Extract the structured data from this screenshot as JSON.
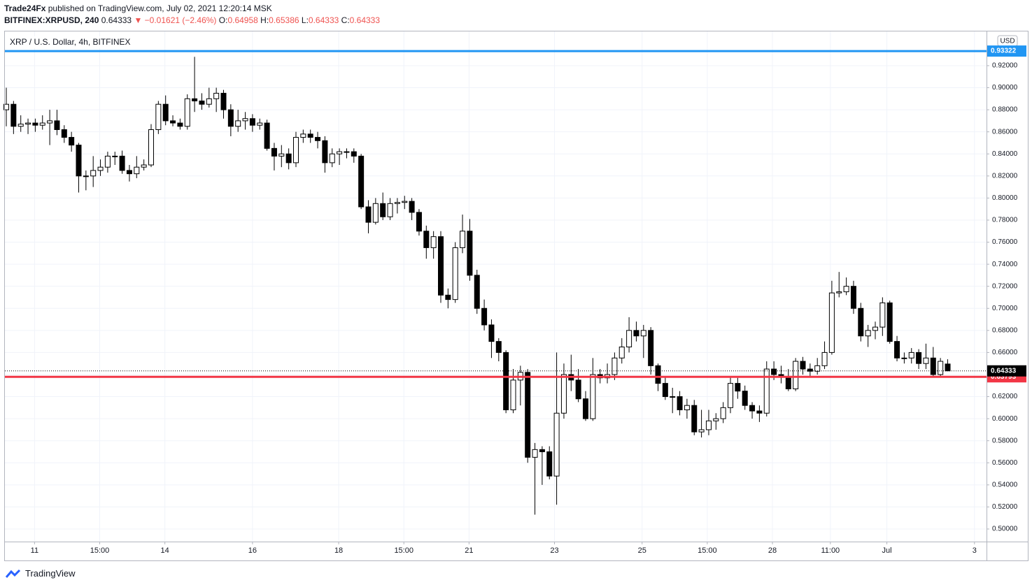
{
  "header": {
    "author": "Trade24Fx",
    "published": "published on TradingView.com, July 02, 2021 12:20:14 MSK",
    "symbol": "BITFINEX:XRPUSD, 240",
    "change": "▼ −0.01621 (−2.46%)",
    "ohlc_labels": [
      "O:",
      "H:",
      "L:",
      "C:"
    ]
  },
  "footer": {
    "brand": "TradingView"
  },
  "chart_data": {
    "type": "candlestick",
    "title": "XRP / U.S. Dollar, 4h, BITFINEX",
    "currency": "USD",
    "up_color": "#ffffff",
    "down_color": "#000000",
    "grid": true,
    "ylim": [
      0.4886,
      0.951
    ],
    "yticks": [
      {
        "value": 0.5,
        "label": "0.50000"
      },
      {
        "value": 0.52,
        "label": "0.52000"
      },
      {
        "value": 0.54,
        "label": "0.54000"
      },
      {
        "value": 0.56,
        "label": "0.56000"
      },
      {
        "value": 0.58,
        "label": "0.58000"
      },
      {
        "value": 0.6,
        "label": "0.60000"
      },
      {
        "value": 0.62,
        "label": "0.62000"
      },
      {
        "value": 0.64,
        "label": "0.64000"
      },
      {
        "value": 0.66,
        "label": "0.66000"
      },
      {
        "value": 0.68,
        "label": "0.68000"
      },
      {
        "value": 0.7,
        "label": "0.70000"
      },
      {
        "value": 0.72,
        "label": "0.72000"
      },
      {
        "value": 0.74,
        "label": "0.74000"
      },
      {
        "value": 0.76,
        "label": "0.76000"
      },
      {
        "value": 0.78,
        "label": "0.78000"
      },
      {
        "value": 0.8,
        "label": "0.80000"
      },
      {
        "value": 0.82,
        "label": "0.82000"
      },
      {
        "value": 0.84,
        "label": "0.84000"
      },
      {
        "value": 0.86,
        "label": "0.86000"
      },
      {
        "value": 0.88,
        "label": "0.88000"
      },
      {
        "value": 0.9,
        "label": "0.90000"
      },
      {
        "value": 0.92,
        "label": "0.92000"
      }
    ],
    "xticks": [
      {
        "value": 3.9,
        "label": "11"
      },
      {
        "value": 12.9,
        "label": "15:00"
      },
      {
        "value": 21.9,
        "label": "14"
      },
      {
        "value": 34.0,
        "label": "16"
      },
      {
        "value": 45.9,
        "label": "18"
      },
      {
        "value": 54.9,
        "label": "15:00"
      },
      {
        "value": 63.9,
        "label": "21"
      },
      {
        "value": 75.7,
        "label": "23"
      },
      {
        "value": 87.8,
        "label": "25"
      },
      {
        "value": 96.8,
        "label": "15:00"
      },
      {
        "value": 105.8,
        "label": "28"
      },
      {
        "value": 113.8,
        "label": "11:00"
      },
      {
        "value": 121.6,
        "label": "Jul"
      },
      {
        "value": 133.7,
        "label": "3"
      }
    ],
    "hlines": [
      {
        "value": 0.93322,
        "color": "#2196f3"
      },
      {
        "value": 0.63793,
        "color": "#f23645"
      }
    ],
    "open": [
      0.88,
      0.885,
      0.865,
      0.867,
      0.868,
      0.866,
      0.868,
      0.87,
      0.862,
      0.855,
      0.848,
      0.82,
      0.82,
      0.825,
      0.828,
      0.838,
      0.838,
      0.825,
      0.822,
      0.828,
      0.83,
      0.862,
      0.885,
      0.87,
      0.868,
      0.865,
      0.89,
      0.888,
      0.885,
      0.89,
      0.895,
      0.88,
      0.865,
      0.87,
      0.872,
      0.866,
      0.868,
      0.845,
      0.838,
      0.84,
      0.832,
      0.855,
      0.858,
      0.855,
      0.852,
      0.832,
      0.84,
      0.842,
      0.842,
      0.838,
      0.792,
      0.778,
      0.795,
      0.783,
      0.795,
      0.796,
      0.797,
      0.787,
      0.77,
      0.755,
      0.765,
      0.712,
      0.708,
      0.755,
      0.77,
      0.73,
      0.7,
      0.685,
      0.67,
      0.66,
      0.608,
      0.635,
      0.642,
      0.565,
      0.572,
      0.57,
      0.548,
      0.605,
      0.64,
      0.635,
      0.618,
      0.6,
      0.64,
      0.637,
      0.64,
      0.655,
      0.665,
      0.68,
      0.675,
      0.68,
      0.648,
      0.632,
      0.62,
      0.62,
      0.608,
      0.612,
      0.588,
      0.59,
      0.598,
      0.6,
      0.61,
      0.632,
      0.625,
      0.612,
      0.607,
      0.605,
      0.645,
      0.64,
      0.638,
      0.627,
      0.652,
      0.645,
      0.643,
      0.648,
      0.66,
      0.714,
      0.715,
      0.72,
      0.7,
      0.675,
      0.68,
      0.683,
      0.705,
      0.67,
      0.655,
      0.655,
      0.66,
      0.65,
      0.655,
      0.64,
      0.64958
    ],
    "high": [
      0.9,
      0.888,
      0.875,
      0.872,
      0.872,
      0.875,
      0.88,
      0.88,
      0.866,
      0.86,
      0.85,
      0.825,
      0.838,
      0.835,
      0.842,
      0.842,
      0.843,
      0.83,
      0.838,
      0.835,
      0.867,
      0.888,
      0.893,
      0.875,
      0.872,
      0.894,
      0.928,
      0.895,
      0.9,
      0.9,
      0.898,
      0.885,
      0.88,
      0.878,
      0.876,
      0.872,
      0.871,
      0.85,
      0.848,
      0.845,
      0.86,
      0.862,
      0.862,
      0.86,
      0.856,
      0.845,
      0.845,
      0.845,
      0.845,
      0.84,
      0.798,
      0.8,
      0.805,
      0.8,
      0.8,
      0.802,
      0.8,
      0.79,
      0.775,
      0.77,
      0.77,
      0.718,
      0.76,
      0.785,
      0.781,
      0.735,
      0.708,
      0.69,
      0.673,
      0.662,
      0.645,
      0.648,
      0.645,
      0.578,
      0.575,
      0.575,
      0.66,
      0.65,
      0.658,
      0.645,
      0.625,
      0.655,
      0.645,
      0.65,
      0.66,
      0.673,
      0.692,
      0.688,
      0.685,
      0.683,
      0.65,
      0.638,
      0.628,
      0.625,
      0.618,
      0.617,
      0.608,
      0.608,
      0.605,
      0.615,
      0.638,
      0.637,
      0.63,
      0.615,
      0.612,
      0.652,
      0.652,
      0.648,
      0.645,
      0.655,
      0.656,
      0.65,
      0.655,
      0.67,
      0.725,
      0.733,
      0.728,
      0.725,
      0.705,
      0.685,
      0.688,
      0.71,
      0.707,
      0.675,
      0.66,
      0.664,
      0.663,
      0.668,
      0.665,
      0.655,
      0.65386
    ],
    "low": [
      0.865,
      0.858,
      0.86,
      0.858,
      0.86,
      0.862,
      0.848,
      0.857,
      0.85,
      0.842,
      0.805,
      0.807,
      0.81,
      0.82,
      0.823,
      0.83,
      0.822,
      0.815,
      0.818,
      0.825,
      0.828,
      0.858,
      0.866,
      0.865,
      0.862,
      0.862,
      0.878,
      0.88,
      0.882,
      0.878,
      0.872,
      0.856,
      0.86,
      0.862,
      0.86,
      0.862,
      0.843,
      0.825,
      0.828,
      0.826,
      0.828,
      0.85,
      0.85,
      0.845,
      0.823,
      0.828,
      0.83,
      0.836,
      0.832,
      0.79,
      0.768,
      0.776,
      0.78,
      0.78,
      0.786,
      0.79,
      0.78,
      0.766,
      0.745,
      0.745,
      0.705,
      0.7,
      0.705,
      0.75,
      0.725,
      0.695,
      0.68,
      0.655,
      0.652,
      0.605,
      0.605,
      0.612,
      0.56,
      0.513,
      0.54,
      0.545,
      0.522,
      0.6,
      0.625,
      0.615,
      0.598,
      0.598,
      0.632,
      0.632,
      0.635,
      0.65,
      0.66,
      0.67,
      0.655,
      0.64,
      0.625,
      0.617,
      0.605,
      0.603,
      0.6,
      0.585,
      0.583,
      0.585,
      0.59,
      0.596,
      0.605,
      0.618,
      0.608,
      0.6,
      0.597,
      0.602,
      0.635,
      0.632,
      0.625,
      0.625,
      0.64,
      0.638,
      0.64,
      0.645,
      0.658,
      0.71,
      0.712,
      0.695,
      0.67,
      0.665,
      0.672,
      0.675,
      0.668,
      0.652,
      0.65,
      0.65,
      0.645,
      0.645,
      0.638,
      0.638,
      0.64333
    ],
    "close": [
      0.885,
      0.865,
      0.867,
      0.868,
      0.866,
      0.868,
      0.87,
      0.862,
      0.855,
      0.848,
      0.82,
      0.82,
      0.825,
      0.828,
      0.838,
      0.838,
      0.825,
      0.822,
      0.828,
      0.83,
      0.862,
      0.885,
      0.87,
      0.868,
      0.865,
      0.89,
      0.888,
      0.885,
      0.89,
      0.895,
      0.88,
      0.865,
      0.87,
      0.872,
      0.866,
      0.868,
      0.845,
      0.838,
      0.84,
      0.832,
      0.855,
      0.858,
      0.855,
      0.852,
      0.832,
      0.84,
      0.842,
      0.842,
      0.838,
      0.792,
      0.778,
      0.795,
      0.783,
      0.795,
      0.796,
      0.797,
      0.787,
      0.77,
      0.755,
      0.765,
      0.712,
      0.708,
      0.755,
      0.77,
      0.73,
      0.7,
      0.685,
      0.67,
      0.66,
      0.608,
      0.635,
      0.642,
      0.565,
      0.572,
      0.57,
      0.548,
      0.605,
      0.64,
      0.635,
      0.618,
      0.6,
      0.64,
      0.637,
      0.64,
      0.655,
      0.665,
      0.68,
      0.675,
      0.68,
      0.648,
      0.632,
      0.62,
      0.62,
      0.608,
      0.612,
      0.588,
      0.59,
      0.598,
      0.6,
      0.61,
      0.632,
      0.625,
      0.612,
      0.607,
      0.605,
      0.645,
      0.64,
      0.638,
      0.627,
      0.652,
      0.645,
      0.643,
      0.648,
      0.66,
      0.714,
      0.715,
      0.72,
      0.7,
      0.675,
      0.68,
      0.683,
      0.705,
      0.67,
      0.655,
      0.655,
      0.66,
      0.65,
      0.655,
      0.64,
      0.652,
      0.64333
    ]
  }
}
